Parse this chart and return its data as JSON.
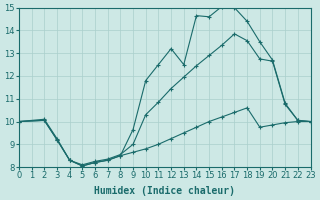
{
  "xlabel": "Humidex (Indice chaleur)",
  "xlim": [
    0,
    23
  ],
  "ylim": [
    8,
    15
  ],
  "xticks": [
    0,
    1,
    2,
    3,
    4,
    5,
    6,
    7,
    8,
    9,
    10,
    11,
    12,
    13,
    14,
    15,
    16,
    17,
    18,
    19,
    20,
    21,
    22,
    23
  ],
  "yticks": [
    8,
    9,
    10,
    11,
    12,
    13,
    14,
    15
  ],
  "bg_color": "#cde8e5",
  "grid_color": "#aacfcc",
  "line_color": "#1a6b6b",
  "line1_x": [
    0,
    2,
    3,
    4,
    5,
    6,
    7,
    8,
    9,
    10,
    11,
    12,
    13,
    14,
    15,
    16,
    17,
    18,
    19,
    20,
    21,
    22,
    23
  ],
  "line1_y": [
    10.0,
    10.05,
    9.2,
    8.3,
    8.05,
    8.2,
    8.3,
    8.5,
    9.65,
    11.8,
    12.5,
    13.2,
    12.5,
    14.65,
    14.6,
    15.05,
    15.0,
    14.4,
    13.5,
    12.7,
    10.8,
    10.05,
    10.0
  ],
  "line2_x": [
    0,
    2,
    3,
    4,
    5,
    6,
    7,
    8,
    9,
    10,
    11,
    12,
    13,
    14,
    15,
    16,
    17,
    18,
    19,
    20,
    21,
    22,
    23
  ],
  "line2_y": [
    10.0,
    10.1,
    9.25,
    8.3,
    8.1,
    8.25,
    8.35,
    8.55,
    9.0,
    10.3,
    10.85,
    11.45,
    11.95,
    12.45,
    12.9,
    13.35,
    13.85,
    13.55,
    12.75,
    12.65,
    10.75,
    10.05,
    10.0
  ],
  "line3_x": [
    0,
    2,
    3,
    4,
    5,
    6,
    7,
    8,
    9,
    10,
    11,
    12,
    13,
    14,
    15,
    16,
    17,
    18,
    19,
    20,
    21,
    22,
    23
  ],
  "line3_y": [
    10.0,
    10.05,
    9.2,
    8.3,
    8.05,
    8.2,
    8.3,
    8.5,
    8.65,
    8.8,
    9.0,
    9.25,
    9.5,
    9.75,
    10.0,
    10.2,
    10.4,
    10.6,
    9.75,
    9.85,
    9.95,
    10.0,
    10.0
  ],
  "xlabel_fontsize": 7,
  "tick_fontsize": 6
}
